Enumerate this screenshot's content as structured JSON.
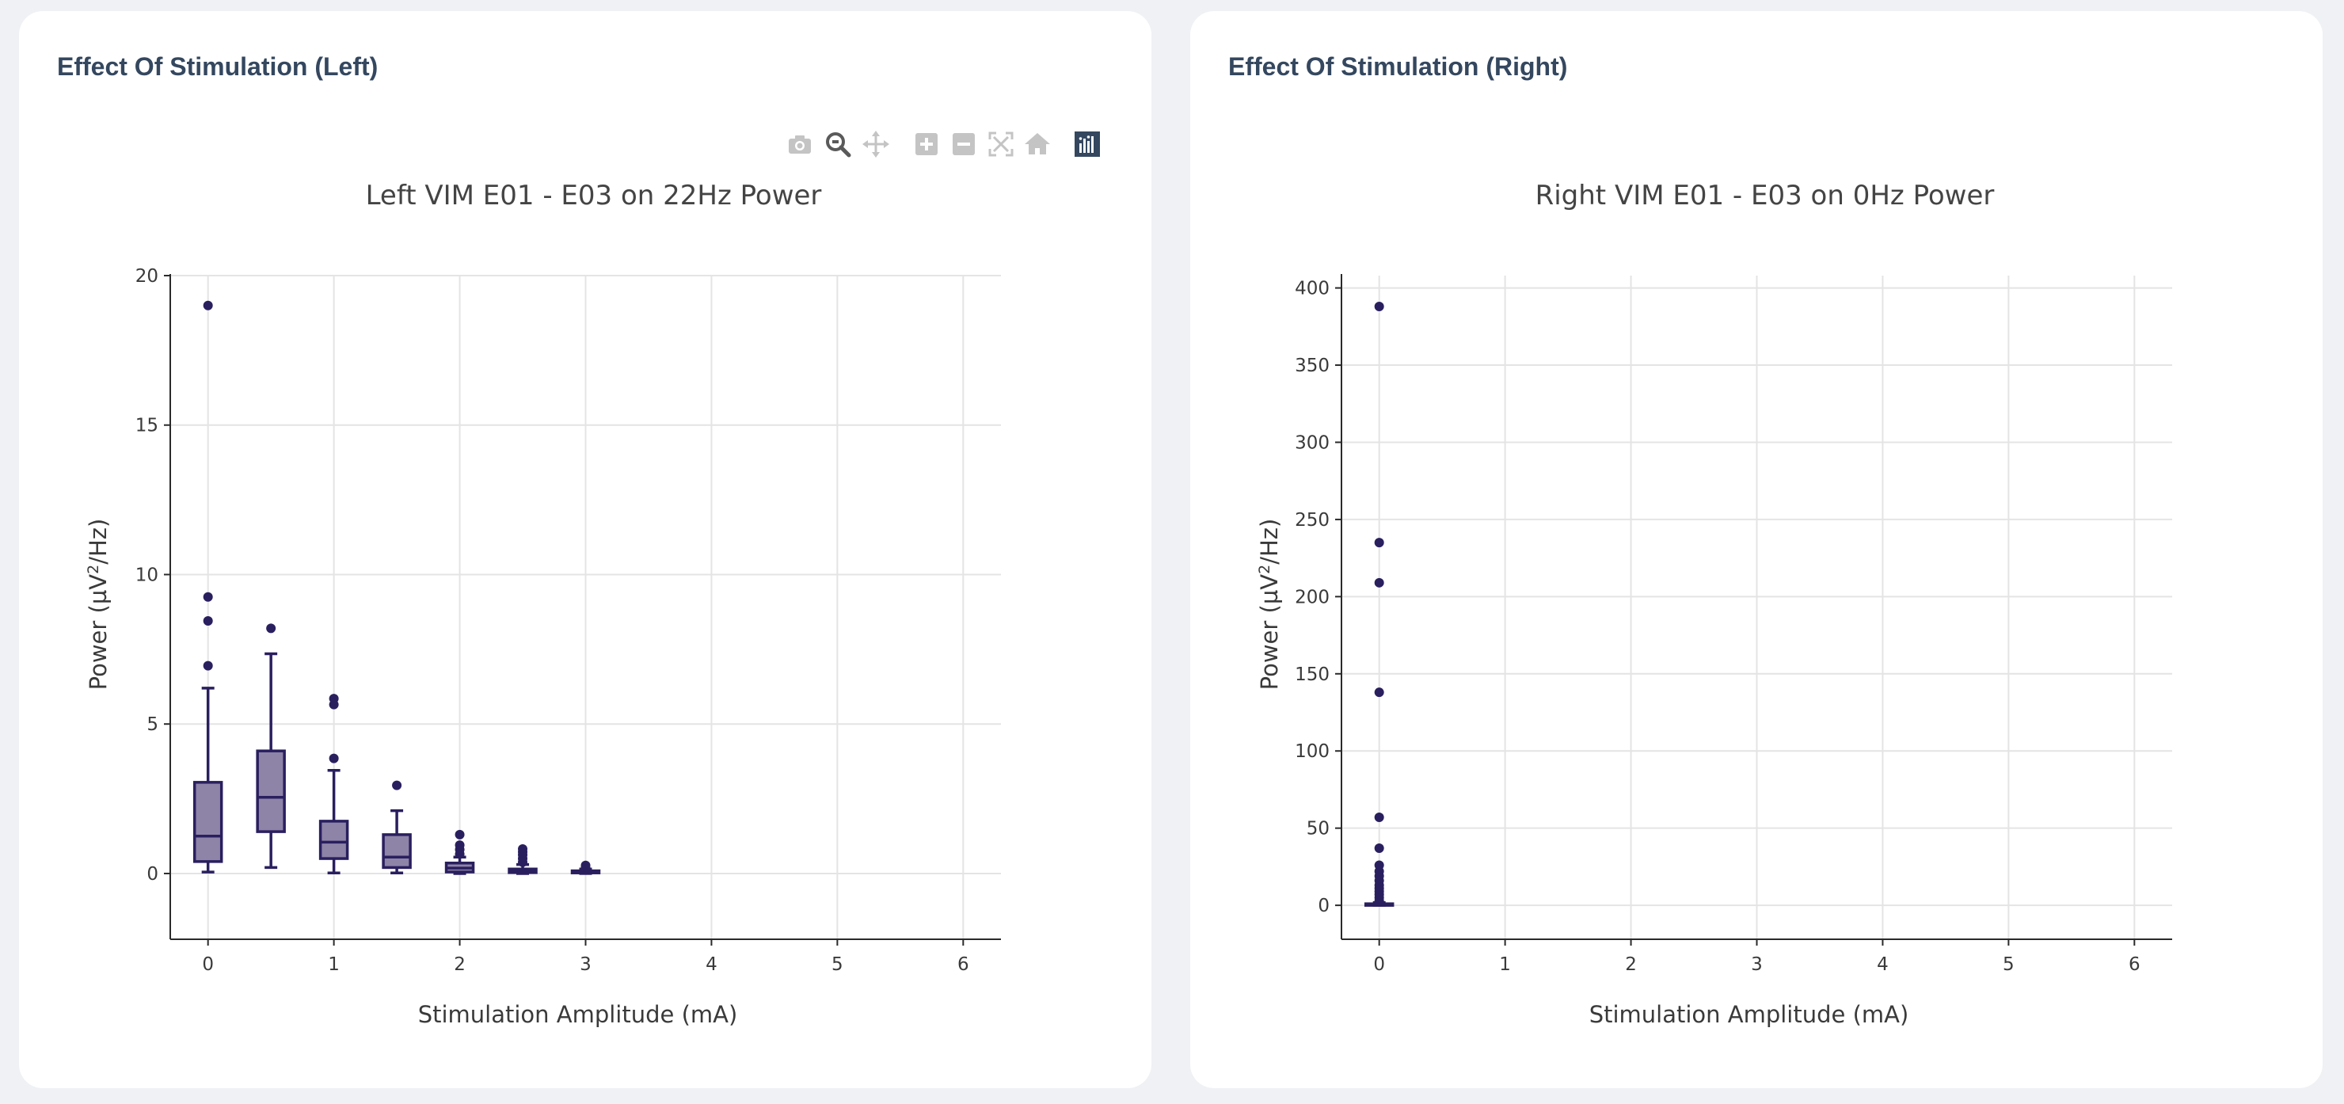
{
  "panels": {
    "left": {
      "title": "Effect Of Stimulation (Left)"
    },
    "right": {
      "title": "Effect Of Stimulation (Right)"
    }
  },
  "modebar": {
    "buttons": [
      "camera-icon",
      "zoom-icon",
      "pan-icon",
      "zoom-in-icon",
      "zoom-out-icon",
      "autoscale-icon",
      "reset-axes-icon",
      "plotly-logo-icon"
    ]
  },
  "colors": {
    "box_fill": "#8e84a8",
    "box_line": "#2a1f5e",
    "outlier": "#2a1f5e",
    "grid": "#e4e4e4",
    "axis": "#2a2a2a"
  },
  "chart_data": [
    {
      "type": "box",
      "title": "Left VIM E01 - E03  on 22Hz Power",
      "xlabel": "Stimulation Amplitude (mA)",
      "ylabel_main": "Power (µV",
      "ylabel_sup": "2",
      "ylabel_tail": "/Hz)",
      "xlim": [
        -0.3,
        6.3
      ],
      "ylim": [
        -2.2,
        20
      ],
      "xticks": [
        0,
        1,
        2,
        3,
        4,
        5,
        6
      ],
      "yticks": [
        0,
        5,
        10,
        15,
        20
      ],
      "boxes": [
        {
          "x": 0,
          "q1": 0.4,
          "median": 1.25,
          "q3": 3.05,
          "lowerfence": 0.05,
          "upperfence": 6.2,
          "outliers": [
            6.95,
            8.45,
            9.25,
            19.0
          ]
        },
        {
          "x": 0.5,
          "q1": 1.4,
          "median": 2.55,
          "q3": 4.1,
          "lowerfence": 0.2,
          "upperfence": 7.35,
          "outliers": [
            8.2
          ]
        },
        {
          "x": 1,
          "q1": 0.5,
          "median": 1.05,
          "q3": 1.75,
          "lowerfence": 0.02,
          "upperfence": 3.45,
          "outliers": [
            3.85,
            5.65,
            5.85
          ]
        },
        {
          "x": 1.5,
          "q1": 0.2,
          "median": 0.55,
          "q3": 1.3,
          "lowerfence": 0.02,
          "upperfence": 2.1,
          "outliers": [
            2.95
          ]
        },
        {
          "x": 2,
          "q1": 0.05,
          "median": 0.18,
          "q3": 0.35,
          "lowerfence": 0.0,
          "upperfence": 0.55,
          "outliers": [
            0.65,
            0.8,
            0.95,
            1.3
          ]
        },
        {
          "x": 2.5,
          "q1": 0.03,
          "median": 0.08,
          "q3": 0.15,
          "lowerfence": 0.0,
          "upperfence": 0.3,
          "outliers": [
            0.38,
            0.5,
            0.62,
            0.72,
            0.82
          ]
        },
        {
          "x": 3,
          "q1": 0.02,
          "median": 0.05,
          "q3": 0.09,
          "lowerfence": 0.0,
          "upperfence": 0.15,
          "outliers": [
            0.2,
            0.27
          ]
        }
      ]
    },
    {
      "type": "box",
      "title": "Right VIM E01 - E03  on 0Hz Power",
      "xlabel": "Stimulation Amplitude (mA)",
      "ylabel_main": "Power (µV",
      "ylabel_sup": "2",
      "ylabel_tail": "/Hz)",
      "xlim": [
        -0.3,
        6.3
      ],
      "ylim": [
        -22,
        408
      ],
      "xticks": [
        0,
        1,
        2,
        3,
        4,
        5,
        6
      ],
      "yticks": [
        0,
        50,
        100,
        150,
        200,
        250,
        300,
        350,
        400
      ],
      "boxes": [
        {
          "x": 0,
          "q1": 0.2,
          "median": 0.5,
          "q3": 1.0,
          "lowerfence": 0.0,
          "upperfence": 1.8,
          "outliers": [
            3,
            5,
            7,
            9,
            11,
            13,
            16,
            19,
            22,
            26,
            37,
            57,
            138,
            209,
            235,
            388
          ]
        }
      ]
    }
  ]
}
